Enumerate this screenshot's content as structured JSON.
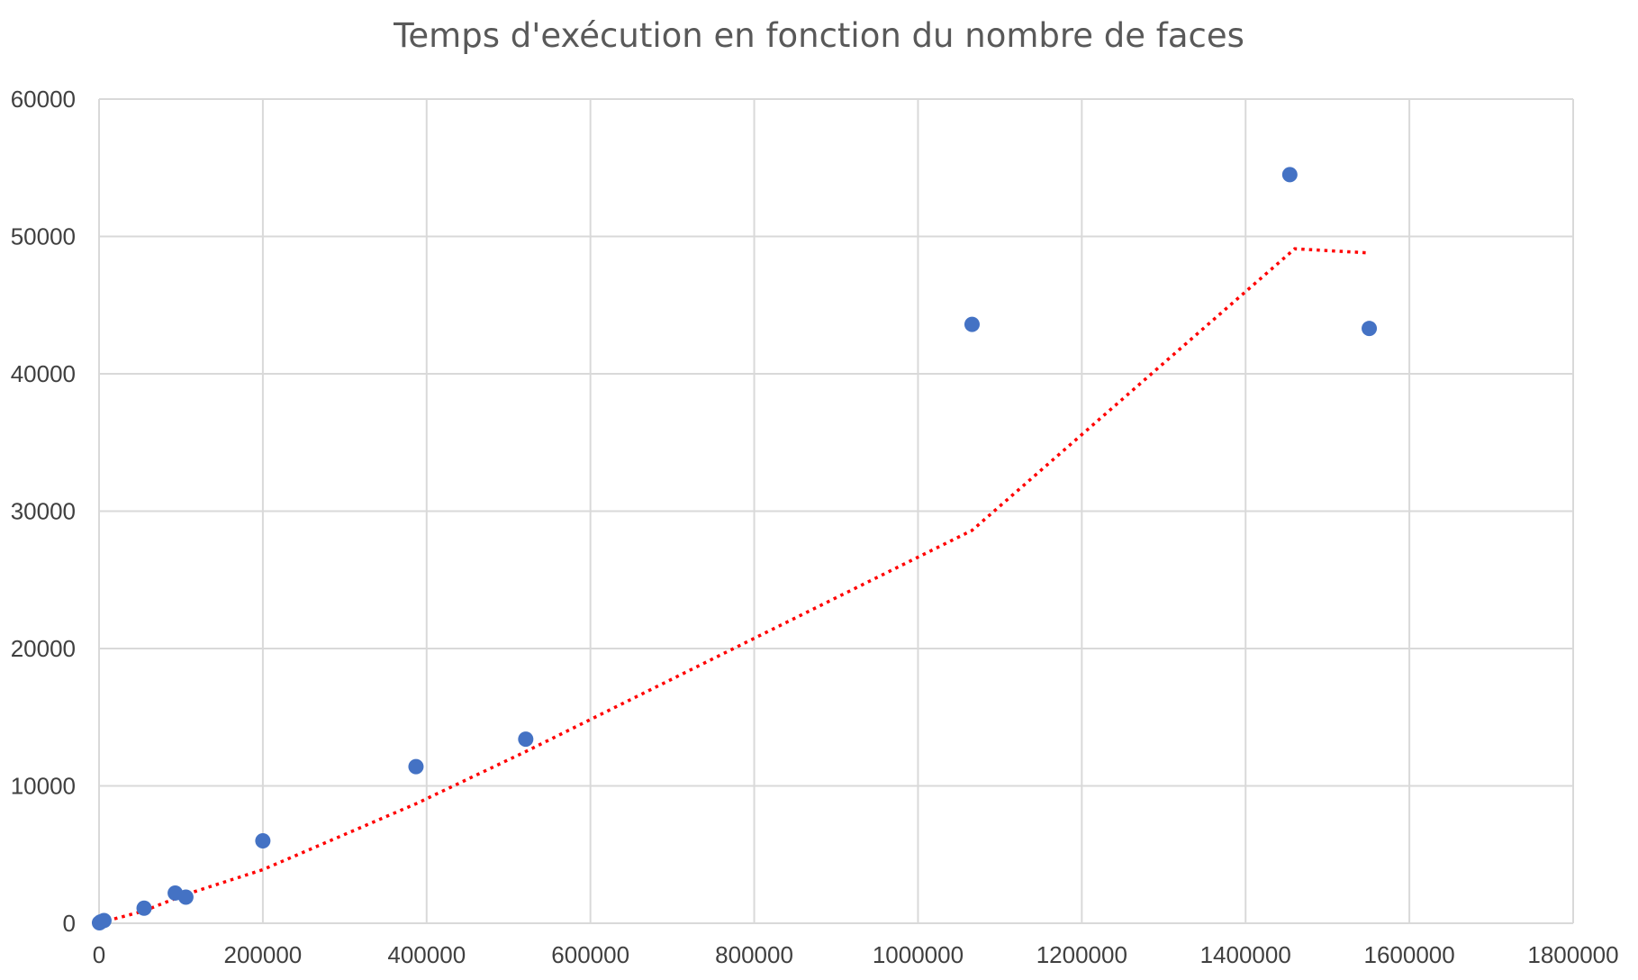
{
  "chart_data": {
    "type": "scatter",
    "title": "Temps d'exécution en fonction du nombre de faces",
    "xlabel": "",
    "ylabel": "",
    "xlim": [
      0,
      1800000
    ],
    "ylim": [
      0,
      60000
    ],
    "x_ticks": [
      0,
      200000,
      400000,
      600000,
      800000,
      1000000,
      1200000,
      1400000,
      1600000,
      1800000
    ],
    "y_ticks": [
      0,
      10000,
      20000,
      30000,
      40000,
      50000,
      60000
    ],
    "grid": true,
    "legend": "none",
    "colors": {
      "points": "#4472c4",
      "trendline": "#ff0000",
      "grid": "#d9d9d9"
    },
    "points": [
      {
        "x": 500,
        "y": 30
      },
      {
        "x": 2000,
        "y": 100
      },
      {
        "x": 6000,
        "y": 200
      },
      {
        "x": 55000,
        "y": 1100
      },
      {
        "x": 93000,
        "y": 2200
      },
      {
        "x": 106000,
        "y": 1900
      },
      {
        "x": 200000,
        "y": 6000
      },
      {
        "x": 387000,
        "y": 11400
      },
      {
        "x": 521000,
        "y": 13400
      },
      {
        "x": 1066000,
        "y": 43600
      },
      {
        "x": 1454000,
        "y": 54500
      },
      {
        "x": 1551000,
        "y": 43300
      }
    ],
    "trendline": {
      "style": "dotted",
      "points": [
        {
          "x": 500,
          "y": 50
        },
        {
          "x": 30000,
          "y": 500
        },
        {
          "x": 55000,
          "y": 900
        },
        {
          "x": 93000,
          "y": 1800
        },
        {
          "x": 106000,
          "y": 2100
        },
        {
          "x": 200000,
          "y": 3900
        },
        {
          "x": 387000,
          "y": 8700
        },
        {
          "x": 521000,
          "y": 12500
        },
        {
          "x": 1066000,
          "y": 28600
        },
        {
          "x": 1460000,
          "y": 49100
        },
        {
          "x": 1551000,
          "y": 48800
        }
      ]
    }
  }
}
